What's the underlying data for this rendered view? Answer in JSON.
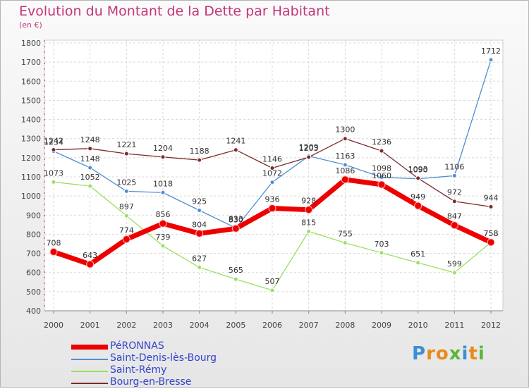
{
  "title": "Evolution du Montant de la Dette par Habitant",
  "subtitle": "(en €)",
  "logo": {
    "text": "Proxiti",
    "letters": [
      {
        "ch": "P",
        "color": "#3a8fd6"
      },
      {
        "ch": "r",
        "color": "#e88a1a"
      },
      {
        "ch": "o",
        "color": "#e88a1a"
      },
      {
        "ch": "x",
        "color": "#5db53a"
      },
      {
        "ch": "i",
        "color": "#3a8fd6"
      },
      {
        "ch": "t",
        "color": "#e88a1a"
      },
      {
        "ch": "i",
        "color": "#5db53a"
      }
    ]
  },
  "chart_data": {
    "type": "line",
    "title": "Evolution du Montant de la Dette par Habitant",
    "subtitle": "(en €)",
    "x": [
      "2000",
      "2001",
      "2002",
      "2003",
      "2004",
      "2005",
      "2006",
      "2007",
      "2008",
      "2009",
      "2010",
      "2011",
      "2012"
    ],
    "ylim": [
      400,
      1800
    ],
    "yticks": [
      400,
      500,
      600,
      700,
      800,
      900,
      1000,
      1100,
      1200,
      1300,
      1400,
      1500,
      1600,
      1700,
      1800
    ],
    "grid": true,
    "legend_position": "bottom-left",
    "series": [
      {
        "name": "PéRONNAS",
        "color": "#ee0000",
        "emphasis": true,
        "values": [
          708,
          643,
          774,
          856,
          804,
          830,
          936,
          928,
          1086,
          1060,
          949,
          847,
          758
        ]
      },
      {
        "name": "Saint-Denis-lès-Bourg",
        "color": "#4f8fcf",
        "emphasis": false,
        "values": [
          1234,
          1148,
          1025,
          1018,
          925,
          833,
          1072,
          1209,
          1163,
          1098,
          1090,
          1106,
          1712
        ]
      },
      {
        "name": "Saint-Rémy",
        "color": "#9adf5f",
        "emphasis": false,
        "values": [
          1073,
          1052,
          897,
          739,
          627,
          565,
          507,
          815,
          755,
          703,
          651,
          599,
          758
        ]
      },
      {
        "name": "Bourg-en-Bresse",
        "color": "#7a2a2a",
        "emphasis": false,
        "values": [
          1242,
          1248,
          1221,
          1204,
          1188,
          1241,
          1146,
          1203,
          1300,
          1236,
          1093,
          972,
          944
        ]
      }
    ]
  }
}
